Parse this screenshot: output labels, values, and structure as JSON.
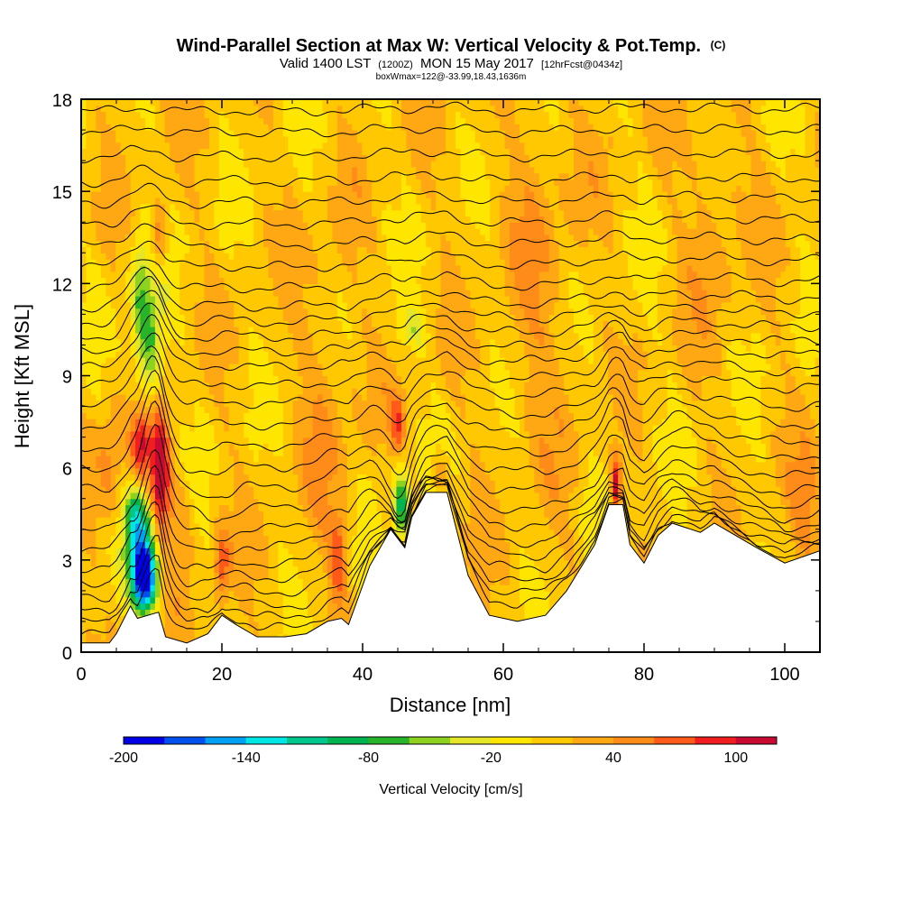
{
  "chart_data": {
    "type": "heatmap",
    "title": "Wind-Parallel Section at Max W: Vertical Velocity & Pot.Temp.",
    "title_tag": "(C)",
    "subtitle": {
      "prefix": "Valid 1400 LST",
      "utc": "(1200Z)",
      "date": "MON 15 May 2017",
      "forecast": "[12hrFcst@0434z]"
    },
    "box_info": "boxWmax=122@-33.99,18.43,1636m",
    "xlabel": "Distance [nm]",
    "ylabel": "Height [Kft MSL]",
    "xlim": [
      0,
      105
    ],
    "ylim": [
      0,
      18
    ],
    "x_ticks": [
      "0",
      "20",
      "40",
      "60",
      "80",
      "100"
    ],
    "x_tick_values": [
      0,
      20,
      40,
      60,
      80,
      100
    ],
    "y_ticks": [
      "0",
      "3",
      "6",
      "9",
      "12",
      "15",
      "18"
    ],
    "y_tick_values": [
      0,
      3,
      6,
      9,
      12,
      15,
      18
    ],
    "terrain_kft": [
      [
        0,
        0.3
      ],
      [
        4,
        0.3
      ],
      [
        5,
        0.6
      ],
      [
        7,
        1.5
      ],
      [
        8,
        1.1
      ],
      [
        11,
        1.3
      ],
      [
        12,
        0.5
      ],
      [
        15,
        0.3
      ],
      [
        18,
        0.6
      ],
      [
        20,
        1.2
      ],
      [
        22,
        0.9
      ],
      [
        25,
        0.5
      ],
      [
        29,
        0.5
      ],
      [
        32,
        0.6
      ],
      [
        35,
        1.0
      ],
      [
        37,
        1.1
      ],
      [
        38,
        0.9
      ],
      [
        41,
        2.8
      ],
      [
        44,
        4.0
      ],
      [
        46,
        3.4
      ],
      [
        47,
        4.4
      ],
      [
        49,
        5.2
      ],
      [
        52,
        5.2
      ],
      [
        53,
        4.3
      ],
      [
        55,
        2.5
      ],
      [
        58,
        1.2
      ],
      [
        62,
        1.0
      ],
      [
        66,
        1.2
      ],
      [
        69,
        2.0
      ],
      [
        73,
        3.5
      ],
      [
        75,
        4.8
      ],
      [
        77,
        4.8
      ],
      [
        78,
        3.5
      ],
      [
        80,
        2.9
      ],
      [
        82,
        3.8
      ],
      [
        84,
        4.2
      ],
      [
        88,
        3.9
      ],
      [
        90,
        4.2
      ],
      [
        93,
        3.8
      ],
      [
        96,
        3.4
      ],
      [
        100,
        2.9
      ],
      [
        105,
        3.3
      ]
    ],
    "colorbar": {
      "label": "Vertical Velocity [cm/s]",
      "tick_labels": [
        "-200",
        "-140",
        "-80",
        "-20",
        "40",
        "100"
      ],
      "tick_values": [
        -200,
        -140,
        -80,
        -20,
        40,
        100
      ],
      "min": -200,
      "max": 120,
      "levels": [
        -200,
        -180,
        -160,
        -140,
        -120,
        -100,
        -80,
        -60,
        -40,
        -20,
        0,
        20,
        40,
        60,
        80,
        100,
        120
      ],
      "colors": [
        "#0000e6",
        "#0050f0",
        "#00a0f5",
        "#00e6e6",
        "#00c88c",
        "#00b450",
        "#28b428",
        "#8cd21e",
        "#e6e628",
        "#ffe600",
        "#ffc800",
        "#ffa814",
        "#ff8c19",
        "#ff5a19",
        "#f01e1e",
        "#c80a32"
      ]
    },
    "velocity_features": [
      {
        "x": 9.0,
        "z": 2.3,
        "sx": 1.2,
        "sz": 0.7,
        "w": -200
      },
      {
        "x": 8.5,
        "z": 3.6,
        "sx": 1.6,
        "sz": 0.9,
        "w": -120
      },
      {
        "x": 7.8,
        "z": 4.7,
        "sx": 0.9,
        "sz": 0.5,
        "w": -60
      },
      {
        "x": 9.5,
        "z": 10.0,
        "sx": 1.4,
        "sz": 1.6,
        "w": -80
      },
      {
        "x": 8.2,
        "z": 12.0,
        "sx": 0.9,
        "sz": 1.2,
        "w": -40
      },
      {
        "x": 45.5,
        "z": 4.8,
        "sx": 0.8,
        "sz": 0.8,
        "w": -100
      },
      {
        "x": 47.0,
        "z": 10.5,
        "sx": 1.5,
        "sz": 0.4,
        "w": -40
      },
      {
        "x": 11.2,
        "z": 5.8,
        "sx": 0.9,
        "sz": 1.4,
        "w": 120
      },
      {
        "x": 8.5,
        "z": 6.8,
        "sx": 1.0,
        "sz": 0.8,
        "w": 90
      },
      {
        "x": 11.0,
        "z": 13.5,
        "sx": 0.8,
        "sz": 0.8,
        "w": 60
      },
      {
        "x": 20.0,
        "z": 2.8,
        "sx": 0.8,
        "sz": 0.9,
        "w": 60
      },
      {
        "x": 36.5,
        "z": 3.0,
        "sx": 0.8,
        "sz": 1.0,
        "w": 60
      },
      {
        "x": 76.0,
        "z": 5.5,
        "sx": 0.5,
        "sz": 0.6,
        "w": 110
      },
      {
        "x": 45.0,
        "z": 7.5,
        "sx": 0.7,
        "sz": 0.6,
        "w": 60
      },
      {
        "x": 51.0,
        "z": 5.8,
        "sx": 0.8,
        "sz": 0.5,
        "w": 45
      },
      {
        "x": 14.0,
        "z": 4.5,
        "sx": 1.5,
        "sz": 1.2,
        "w": 30
      },
      {
        "x": 4.0,
        "z": 6.0,
        "sx": 1.5,
        "sz": 1.6,
        "w": 35
      },
      {
        "x": 103.0,
        "z": 4.5,
        "sx": 2.0,
        "sz": 1.5,
        "w": 30
      },
      {
        "x": 35.0,
        "z": 8.0,
        "sx": 3.0,
        "sz": 4.0,
        "w": 22
      },
      {
        "x": 65.0,
        "z": 12.0,
        "sx": 4.0,
        "sz": 5.0,
        "w": 22
      },
      {
        "x": 90.0,
        "z": 14.5,
        "sx": 3.0,
        "sz": 3.0,
        "w": 22
      },
      {
        "x": 72.0,
        "z": 4.8,
        "sx": 1.0,
        "sz": 0.6,
        "w": -20
      }
    ],
    "contours": {
      "type": "potential-temperature isentropes",
      "levels_base_kft": [
        0.3,
        0.7,
        1.1,
        1.6,
        2.1,
        2.6,
        3.2,
        3.8,
        4.5,
        5.2,
        5.9,
        6.6,
        7.3,
        8.0,
        8.6,
        9.2,
        9.7,
        10.2,
        10.7,
        11.2,
        11.8,
        12.5,
        13.2,
        13.9,
        14.6,
        15.3,
        16.1,
        16.9,
        17.6
      ],
      "perturbations": [
        {
          "x": 10.5,
          "s": 1.5,
          "a": 2.2,
          "zc": 4.0,
          "zs": 3.5
        },
        {
          "x": 9.0,
          "s": 2.2,
          "a": 1.0,
          "zc": 10.0,
          "zs": 3.5
        },
        {
          "x": 20.0,
          "s": 1.8,
          "a": -0.6,
          "zc": 4.0,
          "zs": 2.0
        },
        {
          "x": 45.0,
          "s": 1.6,
          "a": -1.5,
          "zc": 5.0,
          "zs": 2.2
        },
        {
          "x": 37.0,
          "s": 2.5,
          "a": 0.4,
          "zc": 4.0,
          "zs": 2.0
        },
        {
          "x": 60.0,
          "s": 8.0,
          "a": 0.4,
          "zc": 3.0,
          "zs": 4.0
        },
        {
          "x": 76.0,
          "s": 1.3,
          "a": 0.8,
          "zc": 6.5,
          "zs": 2.0
        },
        {
          "x": 85.0,
          "s": 3.0,
          "a": 0.6,
          "zc": 4.5,
          "zs": 2.5
        }
      ]
    }
  }
}
